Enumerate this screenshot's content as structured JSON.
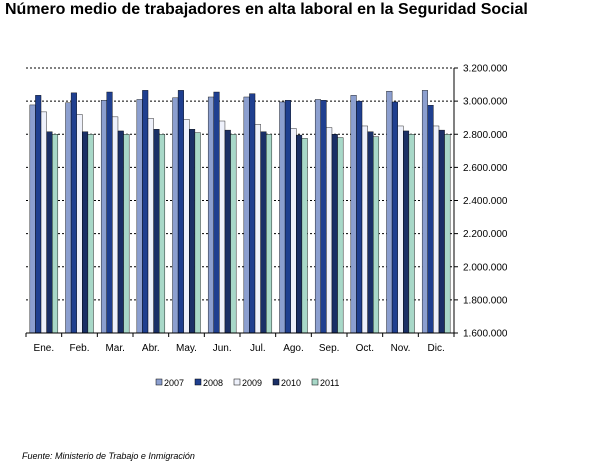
{
  "title": "Número medio de trabajadores en alta laboral en la Seguridad Social",
  "source": "Fuente: Ministerio de Trabajo e Inmigración",
  "chart_data": {
    "type": "bar",
    "categories": [
      "Ene.",
      "Feb.",
      "Mar.",
      "Abr.",
      "May.",
      "Jun.",
      "Jul.",
      "Ago.",
      "Sep.",
      "Oct.",
      "Nov.",
      "Dic."
    ],
    "y_tick_labels": [
      "3.200.000",
      "3.000.000",
      "2.800.000",
      "2.600.000",
      "2.400.000",
      "2.200.000",
      "2.000.000",
      "1.800.000",
      "1.600.000"
    ],
    "ylim": [
      1600000,
      3200000
    ],
    "y_step": 200000,
    "grid": "dashed horizontal",
    "legend_position": "bottom",
    "series": [
      {
        "name": "2007",
        "color": "#8c9fcf",
        "values": [
          2977000,
          2990000,
          3005000,
          3010000,
          3020000,
          3025000,
          3025000,
          2995000,
          3010000,
          3035000,
          3060000,
          3065000
        ]
      },
      {
        "name": "2008",
        "color": "#1f3f8f",
        "values": [
          3035000,
          3050000,
          3055000,
          3065000,
          3065000,
          3055000,
          3045000,
          3005000,
          3005000,
          3000000,
          2995000,
          2975000
        ]
      },
      {
        "name": "2009",
        "color": "#eef1fb",
        "values": [
          2935000,
          2920000,
          2905000,
          2895000,
          2890000,
          2880000,
          2860000,
          2835000,
          2840000,
          2850000,
          2850000,
          2850000
        ]
      },
      {
        "name": "2010",
        "color": "#1a2f66",
        "values": [
          2815000,
          2815000,
          2820000,
          2830000,
          2830000,
          2825000,
          2815000,
          2795000,
          2800000,
          2815000,
          2820000,
          2825000
        ]
      },
      {
        "name": "2011",
        "color": "#a8d8c8",
        "values": [
          2800000,
          2800000,
          2800000,
          2800000,
          2810000,
          2800000,
          2800000,
          2775000,
          2780000,
          2785000,
          2800000,
          2800000
        ]
      }
    ]
  }
}
